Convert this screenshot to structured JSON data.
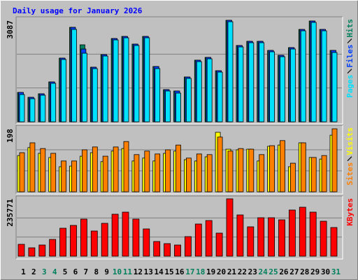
{
  "chart_data": [
    {
      "type": "bar",
      "title": "Daily usage for January 2026",
      "categories": [
        "1",
        "2",
        "3",
        "4",
        "5",
        "6",
        "7",
        "8",
        "9",
        "10",
        "11",
        "12",
        "13",
        "14",
        "15",
        "16",
        "17",
        "18",
        "19",
        "20",
        "21",
        "22",
        "23",
        "24",
        "25",
        "26",
        "27",
        "28",
        "29",
        "30",
        "31"
      ],
      "category_colors": [
        "#000000",
        "#000000",
        "#00805c",
        "#00805c",
        "#000000",
        "#000000",
        "#000000",
        "#000000",
        "#000000",
        "#00805c",
        "#00805c",
        "#000000",
        "#000000",
        "#000000",
        "#000000",
        "#000000",
        "#00805c",
        "#00805c",
        "#000000",
        "#000000",
        "#000000",
        "#000000",
        "#000000",
        "#00805c",
        "#00805c",
        "#000000",
        "#000000",
        "#000000",
        "#000000",
        "#000000",
        "#00805c"
      ],
      "ylim": [
        0,
        3087
      ],
      "yticks": [
        3087
      ],
      "gridlines": [
        1029,
        2058
      ],
      "legend": "right",
      "series": [
        {
          "name": "Hits",
          "color": "#00805c",
          "values": [
            894,
            745,
            852,
            1214,
            1937,
            2874,
            2342,
            1661,
            2044,
            2533,
            2597,
            2363,
            2597,
            1682,
            979,
            937,
            1363,
            1874,
            1959,
            1554,
            3087,
            2321,
            2448,
            2448,
            2172,
            2023,
            2257,
            2810,
            3066,
            2810,
            2172
          ]
        },
        {
          "name": "Files",
          "color": "#0040ff",
          "values": [
            894,
            745,
            852,
            1214,
            1937,
            2874,
            2214,
            1661,
            2044,
            2533,
            2597,
            2363,
            2597,
            1682,
            979,
            937,
            1363,
            1874,
            1959,
            1554,
            3087,
            2321,
            2448,
            2448,
            2172,
            2023,
            2257,
            2810,
            3066,
            2810,
            2172
          ]
        },
        {
          "name": "Pages",
          "color": "#00e0ff",
          "values": [
            830,
            703,
            809,
            1171,
            1895,
            2810,
            2086,
            1618,
            2001,
            2491,
            2555,
            2321,
            2555,
            1618,
            937,
            873,
            1320,
            1831,
            1916,
            1512,
            3044,
            2278,
            2406,
            2406,
            2129,
            1980,
            2214,
            2768,
            3023,
            2768,
            2108
          ]
        }
      ]
    },
    {
      "type": "bar",
      "ylim": [
        0,
        198
      ],
      "yticks": [
        198
      ],
      "gridlines": [
        66,
        132
      ],
      "legend": "right",
      "series": [
        {
          "name": "Visits",
          "color": "#ffff00",
          "values": [
            114,
            139,
            121,
            108,
            79,
            81,
            112,
            123,
            95,
            128,
            136,
            97,
            106,
            97,
            121,
            128,
            101,
            97,
            110,
            187,
            134,
            132,
            134,
            97,
            143,
            147,
            79,
            154,
            108,
            103,
            178
          ]
        },
        {
          "name": "Sites",
          "color": "#ff8000",
          "values": [
            123,
            154,
            136,
            121,
            97,
            97,
            132,
            141,
            112,
            141,
            158,
            117,
            128,
            119,
            132,
            147,
            106,
            119,
            117,
            172,
            128,
            136,
            134,
            117,
            145,
            161,
            90,
            154,
            108,
            114,
            198
          ]
        }
      ]
    },
    {
      "type": "bar",
      "ylim": [
        0,
        235771
      ],
      "yticks": [
        235771
      ],
      "gridlines": [
        78590,
        157181
      ],
      "legend": "right",
      "series": [
        {
          "name": "KBytes",
          "color": "#ff0000",
          "values": [
            48880,
            34500,
            46000,
            69000,
            115000,
            126500,
            152400,
            103500,
            135100,
            172500,
            181100,
            152400,
            112100,
            60400,
            51750,
            46000,
            80500,
            132250,
            146600,
            94900,
            235771,
            169600,
            120750,
            158100,
            158100,
            149500,
            189750,
            201250,
            181100,
            143750,
            117900
          ]
        }
      ]
    }
  ]
}
